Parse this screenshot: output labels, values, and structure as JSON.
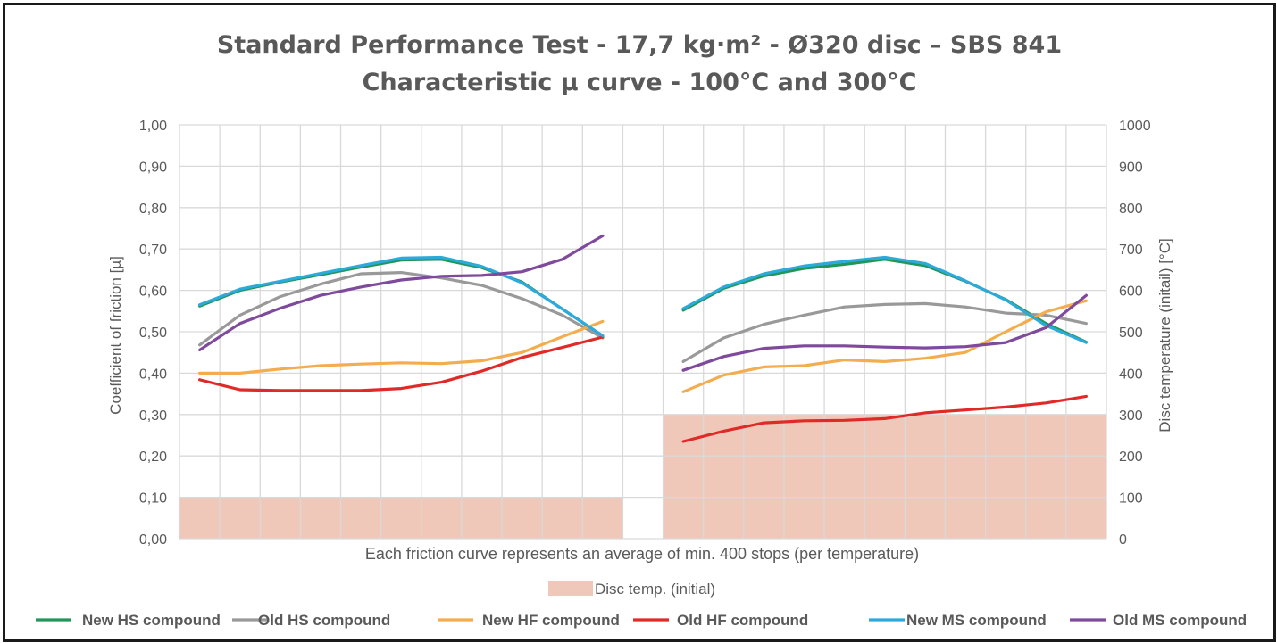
{
  "chart_data": {
    "type": "line",
    "title": [
      "Standard Performance Test - 17,7 kg·m² - Ø320 disc – SBS 841",
      "Characteristic µ curve - 100°C and 300°C"
    ],
    "ylabel": "Coefficient of friction [µ]",
    "y2label": "Disc temperature (initail) [°C]",
    "note": "Each friction curve represents an average of min. 400 stops (per temperature)",
    "ylim": [
      0,
      1
    ],
    "y2lim": [
      0,
      1000
    ],
    "yticks": [
      "0,00",
      "0,10",
      "0,20",
      "0,30",
      "0,40",
      "0,50",
      "0,60",
      "0,70",
      "0,80",
      "0,90",
      "1,00"
    ],
    "y2ticks": [
      "0",
      "100",
      "200",
      "300",
      "400",
      "500",
      "600",
      "700",
      "800",
      "900",
      "1000"
    ],
    "x": [
      1,
      2,
      3,
      4,
      5,
      6,
      7,
      8,
      9,
      10,
      11,
      13,
      14,
      15,
      16,
      17,
      18,
      19,
      20,
      21,
      22,
      23
    ],
    "grid": true,
    "bars": {
      "name": "Disc temp. (initial)",
      "color": "#efc8b9",
      "groups": [
        {
          "x_from": 1,
          "x_to": 11,
          "value": 100
        },
        {
          "x_from": 13,
          "x_to": 23,
          "value": 300
        }
      ]
    },
    "series": [
      {
        "name": "New HS compound",
        "color": "#21965a",
        "values": [
          0.562,
          0.6,
          0.62,
          0.638,
          0.656,
          0.673,
          0.675,
          0.655,
          0.62,
          0.555,
          0.49,
          0.552,
          0.605,
          0.635,
          0.653,
          0.663,
          0.675,
          0.66,
          0.622,
          0.578,
          0.52,
          0.475
        ]
      },
      {
        "name": "Old HS compound",
        "color": "#999999",
        "values": [
          0.468,
          0.54,
          0.585,
          0.615,
          0.64,
          0.643,
          0.63,
          0.612,
          0.58,
          0.54,
          0.485,
          0.428,
          0.485,
          0.518,
          0.54,
          0.56,
          0.566,
          0.568,
          0.56,
          0.545,
          0.54,
          0.52
        ]
      },
      {
        "name": "New HF compound",
        "color": "#f4ad4e",
        "values": [
          0.4,
          0.4,
          0.41,
          0.418,
          0.422,
          0.425,
          0.423,
          0.43,
          0.45,
          0.488,
          0.525,
          0.355,
          0.395,
          0.415,
          0.418,
          0.432,
          0.428,
          0.436,
          0.45,
          0.5,
          0.548,
          0.575
        ]
      },
      {
        "name": "Old HF compound",
        "color": "#e02a28",
        "values": [
          0.384,
          0.36,
          0.358,
          0.358,
          0.358,
          0.363,
          0.378,
          0.405,
          0.438,
          0.462,
          0.487,
          0.235,
          0.26,
          0.28,
          0.285,
          0.286,
          0.29,
          0.304,
          0.311,
          0.318,
          0.328,
          0.344
        ]
      },
      {
        "name": "New MS compound",
        "color": "#2ea9db",
        "values": [
          0.565,
          0.603,
          0.622,
          0.641,
          0.66,
          0.678,
          0.68,
          0.658,
          0.618,
          0.555,
          0.49,
          0.556,
          0.608,
          0.64,
          0.659,
          0.67,
          0.68,
          0.665,
          0.623,
          0.577,
          0.515,
          0.474
        ]
      },
      {
        "name": "Old MS compound",
        "color": "#7f4a9c",
        "values": [
          0.456,
          0.52,
          0.557,
          0.588,
          0.608,
          0.625,
          0.634,
          0.636,
          0.645,
          0.675,
          0.732,
          0.407,
          0.44,
          0.46,
          0.466,
          0.466,
          0.463,
          0.461,
          0.464,
          0.474,
          0.51,
          0.588
        ]
      }
    ],
    "legend_position": "bottom"
  }
}
